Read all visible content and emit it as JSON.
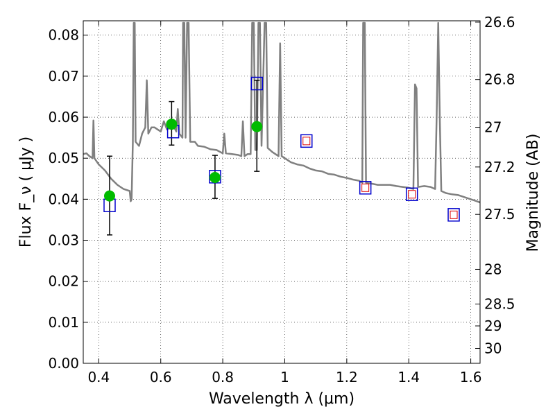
{
  "chart_data": {
    "type": "scatter",
    "xlabel": "Wavelength  λ (μm)",
    "ylabel": "Flux  F_ν  ( μJy )",
    "y2label": "Magnitude (AB)",
    "xlim": [
      0.35,
      1.63
    ],
    "ylim": [
      0.0,
      0.0835
    ],
    "grid": true,
    "x_ticks": [
      {
        "v": 0.4,
        "label": "0.4"
      },
      {
        "v": 0.6,
        "label": "0.6"
      },
      {
        "v": 0.8,
        "label": "0.8"
      },
      {
        "v": 1.0,
        "label": "1"
      },
      {
        "v": 1.2,
        "label": "1.2"
      },
      {
        "v": 1.4,
        "label": "1.4"
      },
      {
        "v": 1.6,
        "label": "1.6"
      }
    ],
    "y_ticks": [
      {
        "v": 0.0,
        "label": "0.00"
      },
      {
        "v": 0.01,
        "label": "0.01"
      },
      {
        "v": 0.02,
        "label": "0.02"
      },
      {
        "v": 0.03,
        "label": "0.03"
      },
      {
        "v": 0.04,
        "label": "0.04"
      },
      {
        "v": 0.05,
        "label": "0.05"
      },
      {
        "v": 0.06,
        "label": "0.06"
      },
      {
        "v": 0.07,
        "label": "0.07"
      },
      {
        "v": 0.08,
        "label": "0.08"
      }
    ],
    "mag_ticks": [
      {
        "mag": 26.6,
        "label": "26.6"
      },
      {
        "mag": 26.8,
        "label": "26.8"
      },
      {
        "mag": 27.0,
        "label": "27"
      },
      {
        "mag": 27.2,
        "label": "27.2"
      },
      {
        "mag": 27.5,
        "label": "27.5"
      },
      {
        "mag": 28.0,
        "label": "28"
      },
      {
        "mag": 28.5,
        "label": "28.5"
      },
      {
        "mag": 29.0,
        "label": "29"
      },
      {
        "mag": 30.0,
        "label": "30"
      }
    ],
    "series": [
      {
        "kind": "spectrum",
        "color": "#808080",
        "points": [
          [
            0.35,
            0.051
          ],
          [
            0.36,
            0.0512
          ],
          [
            0.37,
            0.0505
          ],
          [
            0.38,
            0.05
          ],
          [
            0.383,
            0.0592
          ],
          [
            0.386,
            0.05
          ],
          [
            0.4,
            0.0485
          ],
          [
            0.42,
            0.047
          ],
          [
            0.44,
            0.045
          ],
          [
            0.46,
            0.0435
          ],
          [
            0.48,
            0.0425
          ],
          [
            0.5,
            0.042
          ],
          [
            0.503,
            0.0395
          ],
          [
            0.506,
            0.04
          ],
          [
            0.51,
            0.054
          ],
          [
            0.513,
            0.083
          ],
          [
            0.516,
            0.083
          ],
          [
            0.519,
            0.054
          ],
          [
            0.53,
            0.053
          ],
          [
            0.54,
            0.056
          ],
          [
            0.55,
            0.0575
          ],
          [
            0.555,
            0.069
          ],
          [
            0.56,
            0.056
          ],
          [
            0.57,
            0.0575
          ],
          [
            0.58,
            0.0575
          ],
          [
            0.59,
            0.057
          ],
          [
            0.6,
            0.0565
          ],
          [
            0.61,
            0.059
          ],
          [
            0.62,
            0.057
          ],
          [
            0.64,
            0.058
          ],
          [
            0.65,
            0.0565
          ],
          [
            0.655,
            0.062
          ],
          [
            0.66,
            0.056
          ],
          [
            0.67,
            0.055
          ],
          [
            0.672,
            0.083
          ],
          [
            0.676,
            0.083
          ],
          [
            0.68,
            0.055
          ],
          [
            0.685,
            0.083
          ],
          [
            0.69,
            0.083
          ],
          [
            0.695,
            0.054
          ],
          [
            0.71,
            0.054
          ],
          [
            0.72,
            0.053
          ],
          [
            0.74,
            0.0528
          ],
          [
            0.76,
            0.0522
          ],
          [
            0.78,
            0.052
          ],
          [
            0.8,
            0.0512
          ],
          [
            0.805,
            0.056
          ],
          [
            0.81,
            0.0512
          ],
          [
            0.83,
            0.051
          ],
          [
            0.85,
            0.0508
          ],
          [
            0.86,
            0.0505
          ],
          [
            0.865,
            0.059
          ],
          [
            0.87,
            0.0505
          ],
          [
            0.88,
            0.051
          ],
          [
            0.89,
            0.051
          ],
          [
            0.895,
            0.083
          ],
          [
            0.9,
            0.083
          ],
          [
            0.905,
            0.052
          ],
          [
            0.91,
            0.052
          ],
          [
            0.915,
            0.083
          ],
          [
            0.92,
            0.083
          ],
          [
            0.925,
            0.053
          ],
          [
            0.935,
            0.083
          ],
          [
            0.94,
            0.083
          ],
          [
            0.945,
            0.0525
          ],
          [
            0.96,
            0.0515
          ],
          [
            0.98,
            0.0505
          ],
          [
            0.985,
            0.078
          ],
          [
            0.99,
            0.0505
          ],
          [
            1.0,
            0.05
          ],
          [
            1.02,
            0.049
          ],
          [
            1.04,
            0.0485
          ],
          [
            1.06,
            0.0482
          ],
          [
            1.08,
            0.0475
          ],
          [
            1.1,
            0.047
          ],
          [
            1.12,
            0.0468
          ],
          [
            1.14,
            0.0462
          ],
          [
            1.16,
            0.046
          ],
          [
            1.18,
            0.0455
          ],
          [
            1.2,
            0.0452
          ],
          [
            1.22,
            0.0448
          ],
          [
            1.24,
            0.0445
          ],
          [
            1.25,
            0.044
          ],
          [
            1.253,
            0.083
          ],
          [
            1.258,
            0.083
          ],
          [
            1.262,
            0.044
          ],
          [
            1.28,
            0.0438
          ],
          [
            1.3,
            0.0435
          ],
          [
            1.32,
            0.0435
          ],
          [
            1.34,
            0.0435
          ],
          [
            1.36,
            0.0432
          ],
          [
            1.38,
            0.043
          ],
          [
            1.4,
            0.0428
          ],
          [
            1.415,
            0.0425
          ],
          [
            1.42,
            0.068
          ],
          [
            1.425,
            0.067
          ],
          [
            1.43,
            0.043
          ],
          [
            1.45,
            0.0432
          ],
          [
            1.47,
            0.043
          ],
          [
            1.485,
            0.0425
          ],
          [
            1.49,
            0.06
          ],
          [
            1.495,
            0.083
          ],
          [
            1.5,
            0.06
          ],
          [
            1.505,
            0.042
          ],
          [
            1.52,
            0.0415
          ],
          [
            1.54,
            0.0412
          ],
          [
            1.56,
            0.041
          ],
          [
            1.58,
            0.0405
          ],
          [
            1.6,
            0.04
          ],
          [
            1.62,
            0.0395
          ],
          [
            1.63,
            0.0392
          ]
        ]
      },
      {
        "kind": "model",
        "marker": "open-square",
        "color": "#0000cc",
        "points": [
          {
            "x": 0.435,
            "y": 0.0385
          },
          {
            "x": 0.64,
            "y": 0.0565
          },
          {
            "x": 0.775,
            "y": 0.0455
          },
          {
            "x": 0.91,
            "y": 0.0682
          },
          {
            "x": 1.07,
            "y": 0.0542
          },
          {
            "x": 1.26,
            "y": 0.0428
          },
          {
            "x": 1.41,
            "y": 0.0412
          },
          {
            "x": 1.545,
            "y": 0.0362
          }
        ]
      },
      {
        "kind": "inner",
        "marker": "small-square",
        "color": "#dd0000",
        "points": [
          {
            "x": 1.07,
            "y": 0.0542
          },
          {
            "x": 1.26,
            "y": 0.0428
          },
          {
            "x": 1.41,
            "y": 0.0412
          },
          {
            "x": 1.545,
            "y": 0.0362
          }
        ]
      },
      {
        "kind": "observed",
        "marker": "filled-circle",
        "color": "#00bb00",
        "points": [
          {
            "x": 0.435,
            "y": 0.0408,
            "ylo": 0.0313,
            "yhi": 0.0505
          },
          {
            "x": 0.635,
            "y": 0.0583,
            "ylo": 0.0532,
            "yhi": 0.0638
          },
          {
            "x": 0.775,
            "y": 0.0453,
            "ylo": 0.0402,
            "yhi": 0.0507
          },
          {
            "x": 0.91,
            "y": 0.0577,
            "ylo": 0.0468,
            "yhi": 0.069
          }
        ]
      }
    ]
  }
}
